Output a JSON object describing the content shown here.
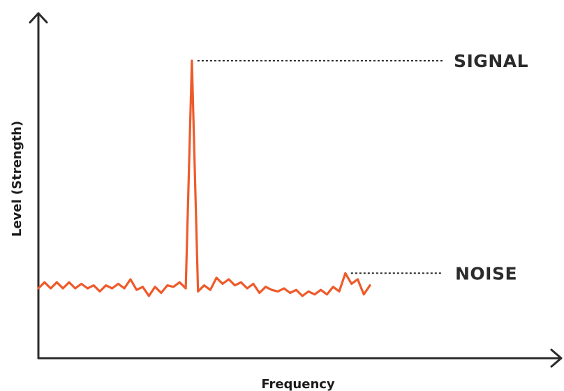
{
  "chart_data": {
    "type": "line",
    "title": "",
    "xlabel": "Frequency",
    "ylabel": "Level (Strength)",
    "xlim": [
      0,
      52
    ],
    "ylim": [
      0,
      100
    ],
    "grid": false,
    "legend": "none",
    "series": [
      {
        "color": "#ee5a2a",
        "values": [
          [
            0,
            23
          ],
          [
            1,
            25
          ],
          [
            2,
            23
          ],
          [
            3,
            25
          ],
          [
            4,
            23
          ],
          [
            5,
            25
          ],
          [
            6,
            23
          ],
          [
            7,
            24.5
          ],
          [
            8,
            23
          ],
          [
            9,
            24
          ],
          [
            10,
            22
          ],
          [
            11,
            24
          ],
          [
            12,
            23
          ],
          [
            13,
            24.5
          ],
          [
            14,
            23
          ],
          [
            15,
            26
          ],
          [
            16,
            22.5
          ],
          [
            17,
            23.5
          ],
          [
            18,
            20.5
          ],
          [
            19,
            23.5
          ],
          [
            20,
            21.5
          ],
          [
            21,
            24
          ],
          [
            22,
            23.5
          ],
          [
            23,
            25
          ],
          [
            24,
            23
          ],
          [
            25,
            98
          ],
          [
            26,
            22
          ],
          [
            27,
            24
          ],
          [
            28,
            22.5
          ],
          [
            29,
            26.5
          ],
          [
            30,
            24.5
          ],
          [
            31,
            26
          ],
          [
            32,
            24
          ],
          [
            33,
            25
          ],
          [
            34,
            23
          ],
          [
            35,
            24.5
          ],
          [
            36,
            21.5
          ],
          [
            37,
            23.5
          ],
          [
            38,
            22.5
          ],
          [
            39,
            22
          ],
          [
            40,
            23
          ],
          [
            41,
            21.5
          ],
          [
            42,
            22.5
          ],
          [
            43,
            20.5
          ],
          [
            44,
            22
          ],
          [
            45,
            21
          ],
          [
            46,
            22.5
          ],
          [
            47,
            21
          ],
          [
            48,
            23.5
          ],
          [
            49,
            22
          ],
          [
            50,
            28
          ],
          [
            51,
            24.5
          ],
          [
            52,
            26
          ],
          [
            53,
            21
          ],
          [
            54,
            24
          ]
        ]
      }
    ],
    "annotations": [
      {
        "text": "SIGNAL",
        "x": 25,
        "y": 98
      },
      {
        "text": "NOISE",
        "x": 50,
        "y": 28
      }
    ]
  }
}
